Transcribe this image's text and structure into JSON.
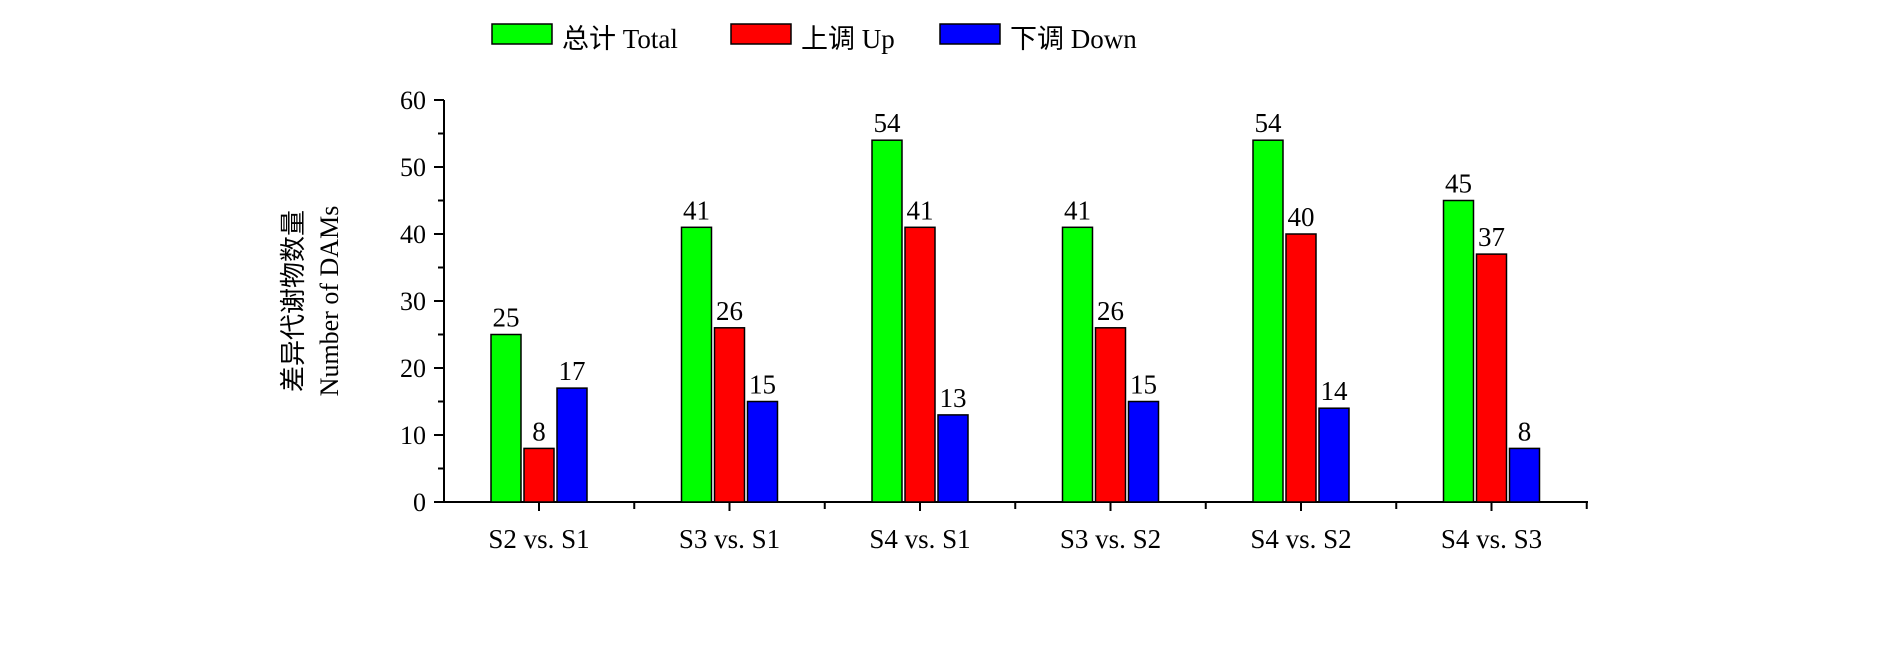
{
  "chart_data": {
    "type": "bar",
    "title": "",
    "xlabel": "",
    "ylabel": [
      "差异代谢物数量",
      "Number of DAMs"
    ],
    "ylim": [
      0,
      60
    ],
    "yticks": [
      0,
      10,
      20,
      30,
      40,
      50,
      60
    ],
    "categories": [
      "S2 vs. S1",
      "S3 vs. S1",
      "S4 vs. S1",
      "S3 vs. S2",
      "S4 vs. S2",
      "S4 vs. S3"
    ],
    "series": [
      {
        "name": "总计 Total",
        "color": "#00ff00",
        "values": [
          25,
          41,
          54,
          41,
          54,
          45
        ]
      },
      {
        "name": "上调 Up",
        "color": "#ff0000",
        "values": [
          8,
          26,
          41,
          26,
          40,
          37
        ]
      },
      {
        "name": "下调 Down",
        "color": "#0000ff",
        "values": [
          17,
          15,
          13,
          15,
          14,
          8
        ]
      }
    ],
    "legend_position": "top",
    "grid": false,
    "data_labels": true
  }
}
